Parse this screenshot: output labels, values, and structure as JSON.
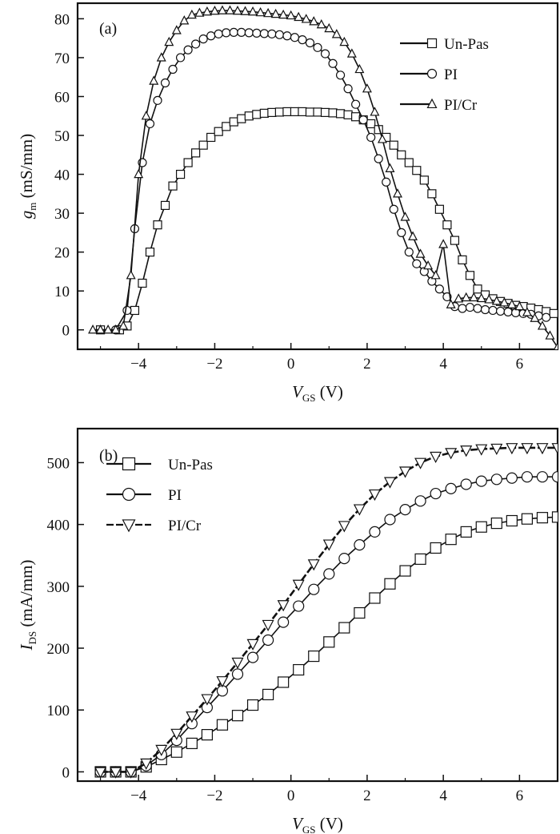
{
  "chart_data": [
    {
      "id": "a",
      "type": "scatter",
      "panel_label": "(a)",
      "xlabel": {
        "main": "V",
        "sub": "GS",
        "unit": " (V)"
      },
      "ylabel": {
        "main": "g",
        "sub": "m",
        "unit": " (mS/mm)"
      },
      "xlim": [
        -5.6,
        7
      ],
      "ylim": [
        -5,
        84
      ],
      "xticks": [
        -4,
        -2,
        0,
        2,
        4,
        6
      ],
      "yticks": [
        0,
        10,
        20,
        30,
        40,
        50,
        60,
        70,
        80
      ],
      "grid": false,
      "legend_position": "top-right",
      "series": [
        {
          "name": "Un-Pas",
          "marker": "square",
          "x": [
            -5.0,
            -4.5,
            -4.3,
            -4.1,
            -3.9,
            -3.7,
            -3.5,
            -3.3,
            -3.1,
            -2.9,
            -2.7,
            -2.5,
            -2.3,
            -2.1,
            -1.9,
            -1.7,
            -1.5,
            -1.3,
            -1.1,
            -0.9,
            -0.7,
            -0.5,
            -0.3,
            -0.1,
            0.1,
            0.3,
            0.5,
            0.7,
            0.9,
            1.1,
            1.3,
            1.5,
            1.7,
            1.9,
            2.1,
            2.3,
            2.5,
            2.7,
            2.9,
            3.1,
            3.3,
            3.5,
            3.7,
            3.9,
            4.1,
            4.3,
            4.5,
            4.7,
            4.9,
            5.1,
            5.3,
            5.5,
            5.7,
            5.9,
            6.1,
            6.3,
            6.5,
            6.7,
            6.9
          ],
          "y": [
            0,
            0,
            1,
            5,
            12,
            20,
            27,
            32,
            37,
            40,
            43,
            45.5,
            47.5,
            49.5,
            51,
            52.3,
            53.5,
            54.3,
            55,
            55.4,
            55.7,
            55.9,
            56,
            56.1,
            56.1,
            56.1,
            56,
            56,
            55.9,
            55.8,
            55.6,
            55.3,
            54.8,
            54,
            53,
            51.5,
            49.5,
            47.5,
            45,
            43,
            41,
            38.5,
            35,
            31,
            27,
            23,
            18,
            14,
            10.5,
            9,
            8,
            7.3,
            6.8,
            6.3,
            6,
            5.6,
            5.2,
            4.7,
            4.2
          ]
        },
        {
          "name": "PI",
          "marker": "circle",
          "x": [
            -4.6,
            -4.3,
            -4.1,
            -3.9,
            -3.7,
            -3.5,
            -3.3,
            -3.1,
            -2.9,
            -2.7,
            -2.5,
            -2.3,
            -2.1,
            -1.9,
            -1.7,
            -1.5,
            -1.3,
            -1.1,
            -0.9,
            -0.7,
            -0.5,
            -0.3,
            -0.1,
            0.1,
            0.3,
            0.5,
            0.7,
            0.9,
            1.1,
            1.3,
            1.5,
            1.7,
            1.9,
            2.1,
            2.3,
            2.5,
            2.7,
            2.9,
            3.1,
            3.3,
            3.5,
            3.7,
            3.9,
            4.1,
            4.3,
            4.5,
            4.7,
            4.9,
            5.1,
            5.3,
            5.5,
            5.7,
            5.9,
            6.1,
            6.3,
            6.5,
            6.7
          ],
          "y": [
            0,
            5,
            26,
            43,
            53,
            59,
            63.5,
            67,
            70,
            72,
            73.5,
            74.8,
            75.6,
            76.1,
            76.4,
            76.5,
            76.5,
            76.4,
            76.3,
            76.2,
            76.1,
            75.9,
            75.6,
            75.2,
            74.6,
            73.8,
            72.6,
            71,
            68.5,
            65.5,
            62,
            58,
            54,
            49.5,
            44,
            38,
            31,
            25,
            20,
            17,
            15,
            12.5,
            10.5,
            8.5,
            6,
            5.5,
            5.8,
            5.5,
            5.2,
            5,
            4.8,
            4.6,
            4.4,
            4.2,
            4,
            3.6,
            3.2
          ]
        },
        {
          "name": "PI/Cr",
          "marker": "triangle",
          "x": [
            -5.2,
            -5.0,
            -4.8,
            -4.6,
            -4.4,
            -4.2,
            -4.0,
            -3.8,
            -3.6,
            -3.4,
            -3.2,
            -3.0,
            -2.8,
            -2.6,
            -2.4,
            -2.2,
            -2.0,
            -1.8,
            -1.6,
            -1.4,
            -1.2,
            -1.0,
            -0.8,
            -0.6,
            -0.4,
            -0.2,
            0.0,
            0.2,
            0.4,
            0.6,
            0.8,
            1.0,
            1.2,
            1.4,
            1.6,
            1.8,
            2.0,
            2.2,
            2.4,
            2.6,
            2.8,
            3.0,
            3.2,
            3.4,
            3.6,
            3.8,
            4.0,
            4.2,
            4.4,
            4.6,
            4.8,
            5.0,
            5.2,
            5.4,
            5.6,
            5.8,
            6.0,
            6.2,
            6.4,
            6.6,
            6.8,
            7.0
          ],
          "y": [
            0,
            0,
            0,
            0,
            1,
            14,
            40,
            55,
            64,
            70,
            74,
            77,
            79.5,
            81,
            81.5,
            81.8,
            82,
            82.1,
            82.1,
            82,
            81.9,
            81.8,
            81.6,
            81.4,
            81.2,
            81,
            80.8,
            80.4,
            79.9,
            79.3,
            78.5,
            77.5,
            76,
            74,
            71,
            67,
            62,
            56,
            49,
            41.5,
            35,
            29,
            24,
            19.5,
            16.5,
            14,
            22,
            6.5,
            8,
            8.3,
            8.3,
            8.1,
            7.8,
            7.4,
            7,
            6.5,
            6,
            4.5,
            3,
            1,
            -1.5,
            -4.5
          ]
        }
      ]
    },
    {
      "id": "b",
      "type": "line",
      "panel_label": "(b)",
      "xlabel": {
        "main": "V",
        "sub": "GS",
        "unit": " (V)"
      },
      "ylabel": {
        "main": "I",
        "sub": "DS",
        "unit": " (mA/mm)"
      },
      "xlim": [
        -5.6,
        7
      ],
      "ylim": [
        -15,
        555
      ],
      "xticks": [
        -4,
        -2,
        0,
        2,
        4,
        6
      ],
      "yticks": [
        0,
        100,
        200,
        300,
        400,
        500
      ],
      "grid": false,
      "legend_position": "top-left",
      "series": [
        {
          "name": "Un-Pas",
          "marker": "square",
          "x": [
            -5,
            -4.6,
            -4.2,
            -3.8,
            -3.4,
            -3.0,
            -2.6,
            -2.2,
            -1.8,
            -1.4,
            -1.0,
            -0.6,
            -0.2,
            0.2,
            0.6,
            1.0,
            1.4,
            1.8,
            2.2,
            2.6,
            3.0,
            3.4,
            3.8,
            4.2,
            4.6,
            5.0,
            5.4,
            5.8,
            6.2,
            6.6,
            7.0
          ],
          "y": [
            0,
            0,
            0,
            8,
            20,
            32,
            46,
            60,
            76,
            91,
            108,
            125,
            145,
            165,
            187,
            210,
            233,
            257,
            281,
            304,
            325,
            344,
            362,
            376,
            388,
            396,
            402,
            406,
            409,
            411,
            412
          ]
        },
        {
          "name": "PI",
          "marker": "circle",
          "x": [
            -5,
            -4.6,
            -4.2,
            -3.8,
            -3.4,
            -3.0,
            -2.6,
            -2.2,
            -1.8,
            -1.4,
            -1.0,
            -0.6,
            -0.2,
            0.2,
            0.6,
            1.0,
            1.4,
            1.8,
            2.2,
            2.6,
            3.0,
            3.4,
            3.8,
            4.2,
            4.6,
            5.0,
            5.4,
            5.8,
            6.2,
            6.6,
            7.0
          ],
          "y": [
            0,
            0,
            0,
            10,
            28,
            51,
            78,
            104,
            131,
            158,
            185,
            213,
            242,
            268,
            295,
            320,
            345,
            367,
            388,
            408,
            424,
            438,
            450,
            458,
            465,
            470,
            473,
            475,
            477,
            477,
            477
          ]
        },
        {
          "name": "PI/Cr",
          "marker": "triangle-down",
          "x": [
            -5,
            -4.6,
            -4.2,
            -3.8,
            -3.4,
            -3.0,
            -2.6,
            -2.2,
            -1.8,
            -1.4,
            -1.0,
            -0.6,
            -0.2,
            0.2,
            0.6,
            1.0,
            1.4,
            1.8,
            2.2,
            2.6,
            3.0,
            3.4,
            3.8,
            4.2,
            4.6,
            5.0,
            5.4,
            5.8,
            6.2,
            6.6,
            7.0
          ],
          "y": [
            0,
            0,
            0,
            14,
            36,
            62,
            90,
            118,
            147,
            177,
            207,
            238,
            270,
            303,
            336,
            368,
            398,
            425,
            449,
            469,
            486,
            500,
            510,
            516,
            520,
            522,
            523,
            524,
            524,
            524,
            524
          ]
        }
      ]
    }
  ]
}
